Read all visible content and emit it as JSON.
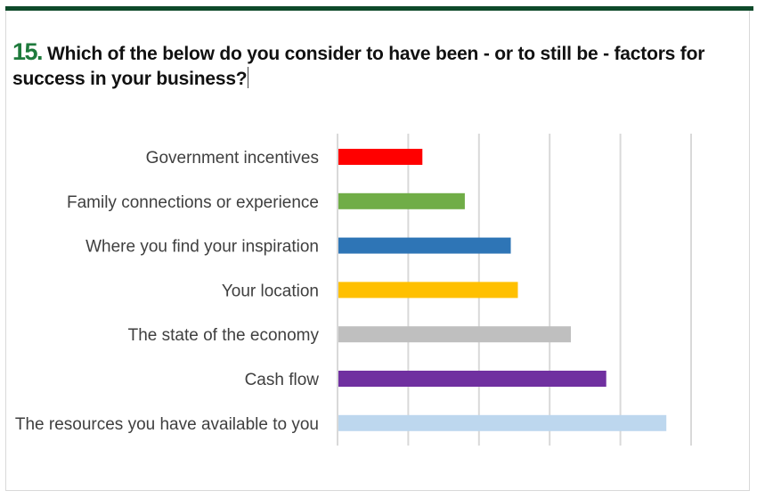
{
  "question": {
    "number": "15.",
    "text": "Which of the below do you consider to have been - or to still be - factors for success in your business?"
  },
  "chart_data": {
    "type": "bar",
    "orientation": "horizontal",
    "title": "Which of the below do you consider to have been - or to still be - factors for success in your business?",
    "categories": [
      "Government incentives",
      "Family connections or experience",
      "Where you find your inspiration",
      "Your location",
      "The state of the economy",
      "Cash flow",
      "The resources you have available to you"
    ],
    "values": [
      12,
      18,
      24.5,
      25.5,
      33,
      38,
      46.5
    ],
    "colors": [
      "#ff0000",
      "#70ad47",
      "#2e75b6",
      "#ffc000",
      "#bfbfbf",
      "#7030a0",
      "#bdd7ee"
    ],
    "xlim": [
      0,
      50
    ],
    "gridlines": [
      0,
      10,
      20,
      30,
      40,
      50
    ],
    "grid": true,
    "xlabel": "",
    "ylabel": ""
  }
}
